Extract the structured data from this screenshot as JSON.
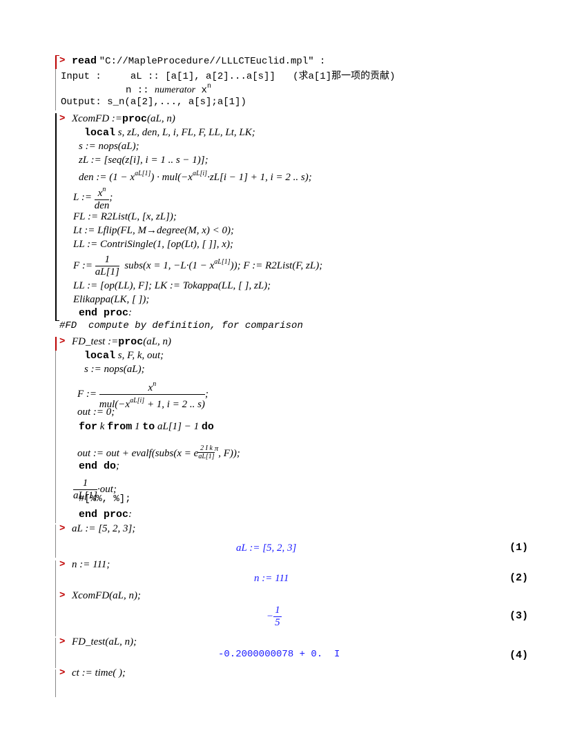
{
  "prompt": ">",
  "read": [
    "read",
    "\"C://MapleProcedure//LLLCTEuclid.mpl\" :"
  ],
  "info": {
    "input_label": "Input :",
    "aL": "aL :: [a[1], a[2]...a[s]]",
    "note": "(求a[1]那一项的贡献)",
    "n": "n :: ",
    "numerator": "numerator",
    "x": "x",
    "exp": "n",
    "output": "Output: s_n(a[2],..., a[s];a[1])"
  },
  "xcomfd": {
    "head": [
      "XcomFD",
      ":=",
      "proc",
      "(aL, n)"
    ],
    "local": [
      "local",
      "s, zL, den, L, i, FL, F, LL, Lt, LK;"
    ],
    "s": "s := nops(aL);",
    "zL": "zL := [seq(z[i], i = 1 .. s − 1)];",
    "den": [
      "den := (1 − x",
      "aL[1]",
      ") · mul(−x",
      "aL[i]",
      "·zL[i − 1] + 1, i = 2 .. s);"
    ],
    "L": [
      "L :=",
      "x",
      "n",
      "den",
      ";"
    ],
    "FL": "FL := R2List(L, [x, zL]);",
    "Lt": "Lt := Lflip(FL, M→degree(M, x) < 0);",
    "LL": "LL := ContriSingle(1, [op(Lt), [ ]], x);",
    "F": [
      "F :=",
      "1",
      "aL[1]",
      "subs(x = 1, −L·(1 − x",
      "aL[1]",
      ")); F := R2List(F, zL);"
    ],
    "LK": "LL := [op(LL), F]; LK := Tokappa(LL, [ ], zL);",
    "eli": "Elikappa(LK, [ ]);",
    "end": [
      "end proc",
      ":"
    ]
  },
  "comment": "#FD  compute by definition, for comparison",
  "fdtest": {
    "head": [
      "FD_test",
      ":=",
      "proc",
      "(aL, n)"
    ],
    "local": [
      "local",
      "s, F, k, out;"
    ],
    "s": "s := nops(aL);",
    "F": [
      "F :=",
      "x",
      "n",
      "mul(−x",
      "aL[i]",
      " + 1, i = 2 .. s)",
      ";"
    ],
    "out0": "out := 0;",
    "for": [
      "for",
      "k",
      "from",
      "1",
      "to",
      "aL[1] − 1",
      "do"
    ],
    "evalf": [
      "out := out + evalf(subs(x = e",
      "2 I k",
      "aL[1]",
      "π",
      ", F));"
    ],
    "enddo": [
      "end do",
      ";"
    ],
    "avg": [
      "1",
      "aL[1]",
      "·out;"
    ],
    "comment": "#[%%, %];",
    "end": [
      "end proc",
      ":"
    ]
  },
  "groups": [
    {
      "input": "aL := [5, 2, 3];",
      "output": "aL := [5, 2, 3]",
      "label": "(1)"
    },
    {
      "input": "n := 111;",
      "output": "n := 111",
      "label": "(2)"
    },
    {
      "input": "XcomFD(aL, n);",
      "output": {
        "sign": "−",
        "num": "1",
        "den": "5"
      },
      "label": "(3)"
    },
    {
      "input": "FD_test(aL, n);",
      "output": "-0.2000000078 + 0.  I",
      "label": "(4)"
    },
    {
      "input": "ct := time( );"
    }
  ]
}
